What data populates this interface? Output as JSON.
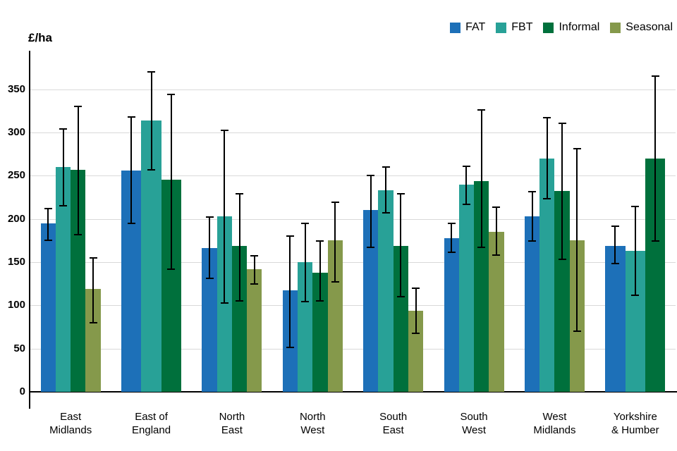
{
  "chart_data": {
    "type": "bar",
    "title": "",
    "ylabel": "£/ha",
    "yticks": [
      0,
      50,
      100,
      150,
      200,
      250,
      300,
      350
    ],
    "ylim": [
      0,
      392
    ],
    "grid": true,
    "legend_position": "top-right",
    "axis_color": "#000000",
    "gridline_color": "#d9d9d9",
    "categories": [
      "East\nMidlands",
      "East of\nEngland",
      "North\nEast",
      "North\nWest",
      "South\nEast",
      "South\nWest",
      "West\nMidlands",
      "Yorkshire\n& Humber"
    ],
    "series": [
      {
        "name": "FAT",
        "color": "#1d70b8",
        "values": [
          195,
          256,
          166,
          117,
          210,
          178,
          203,
          169
        ],
        "error_low": [
          175,
          195,
          131,
          51,
          167,
          161,
          174,
          148
        ],
        "error_high": [
          213,
          319,
          203,
          181,
          251,
          196,
          232,
          192
        ]
      },
      {
        "name": "FBT",
        "color": "#28a197",
        "values": [
          260,
          314,
          203,
          150,
          233,
          240,
          270,
          163
        ],
        "error_low": [
          215,
          257,
          103,
          104,
          207,
          217,
          223,
          112
        ],
        "error_high": [
          305,
          371,
          303,
          196,
          261,
          262,
          318,
          215
        ]
      },
      {
        "name": "Informal",
        "color": "#00703c",
        "values": [
          257,
          245,
          169,
          138,
          169,
          244,
          232,
          270
        ],
        "error_low": [
          182,
          142,
          105,
          105,
          110,
          167,
          153,
          174
        ],
        "error_high": [
          331,
          345,
          230,
          175,
          230,
          327,
          311,
          366
        ]
      },
      {
        "name": "Seasonal",
        "color": "#85994b",
        "values": [
          119,
          null,
          142,
          175,
          94,
          185,
          175,
          null
        ],
        "error_low": [
          80,
          null,
          125,
          127,
          68,
          158,
          70,
          null
        ],
        "error_high": [
          156,
          null,
          158,
          220,
          121,
          214,
          282,
          null
        ]
      }
    ]
  }
}
